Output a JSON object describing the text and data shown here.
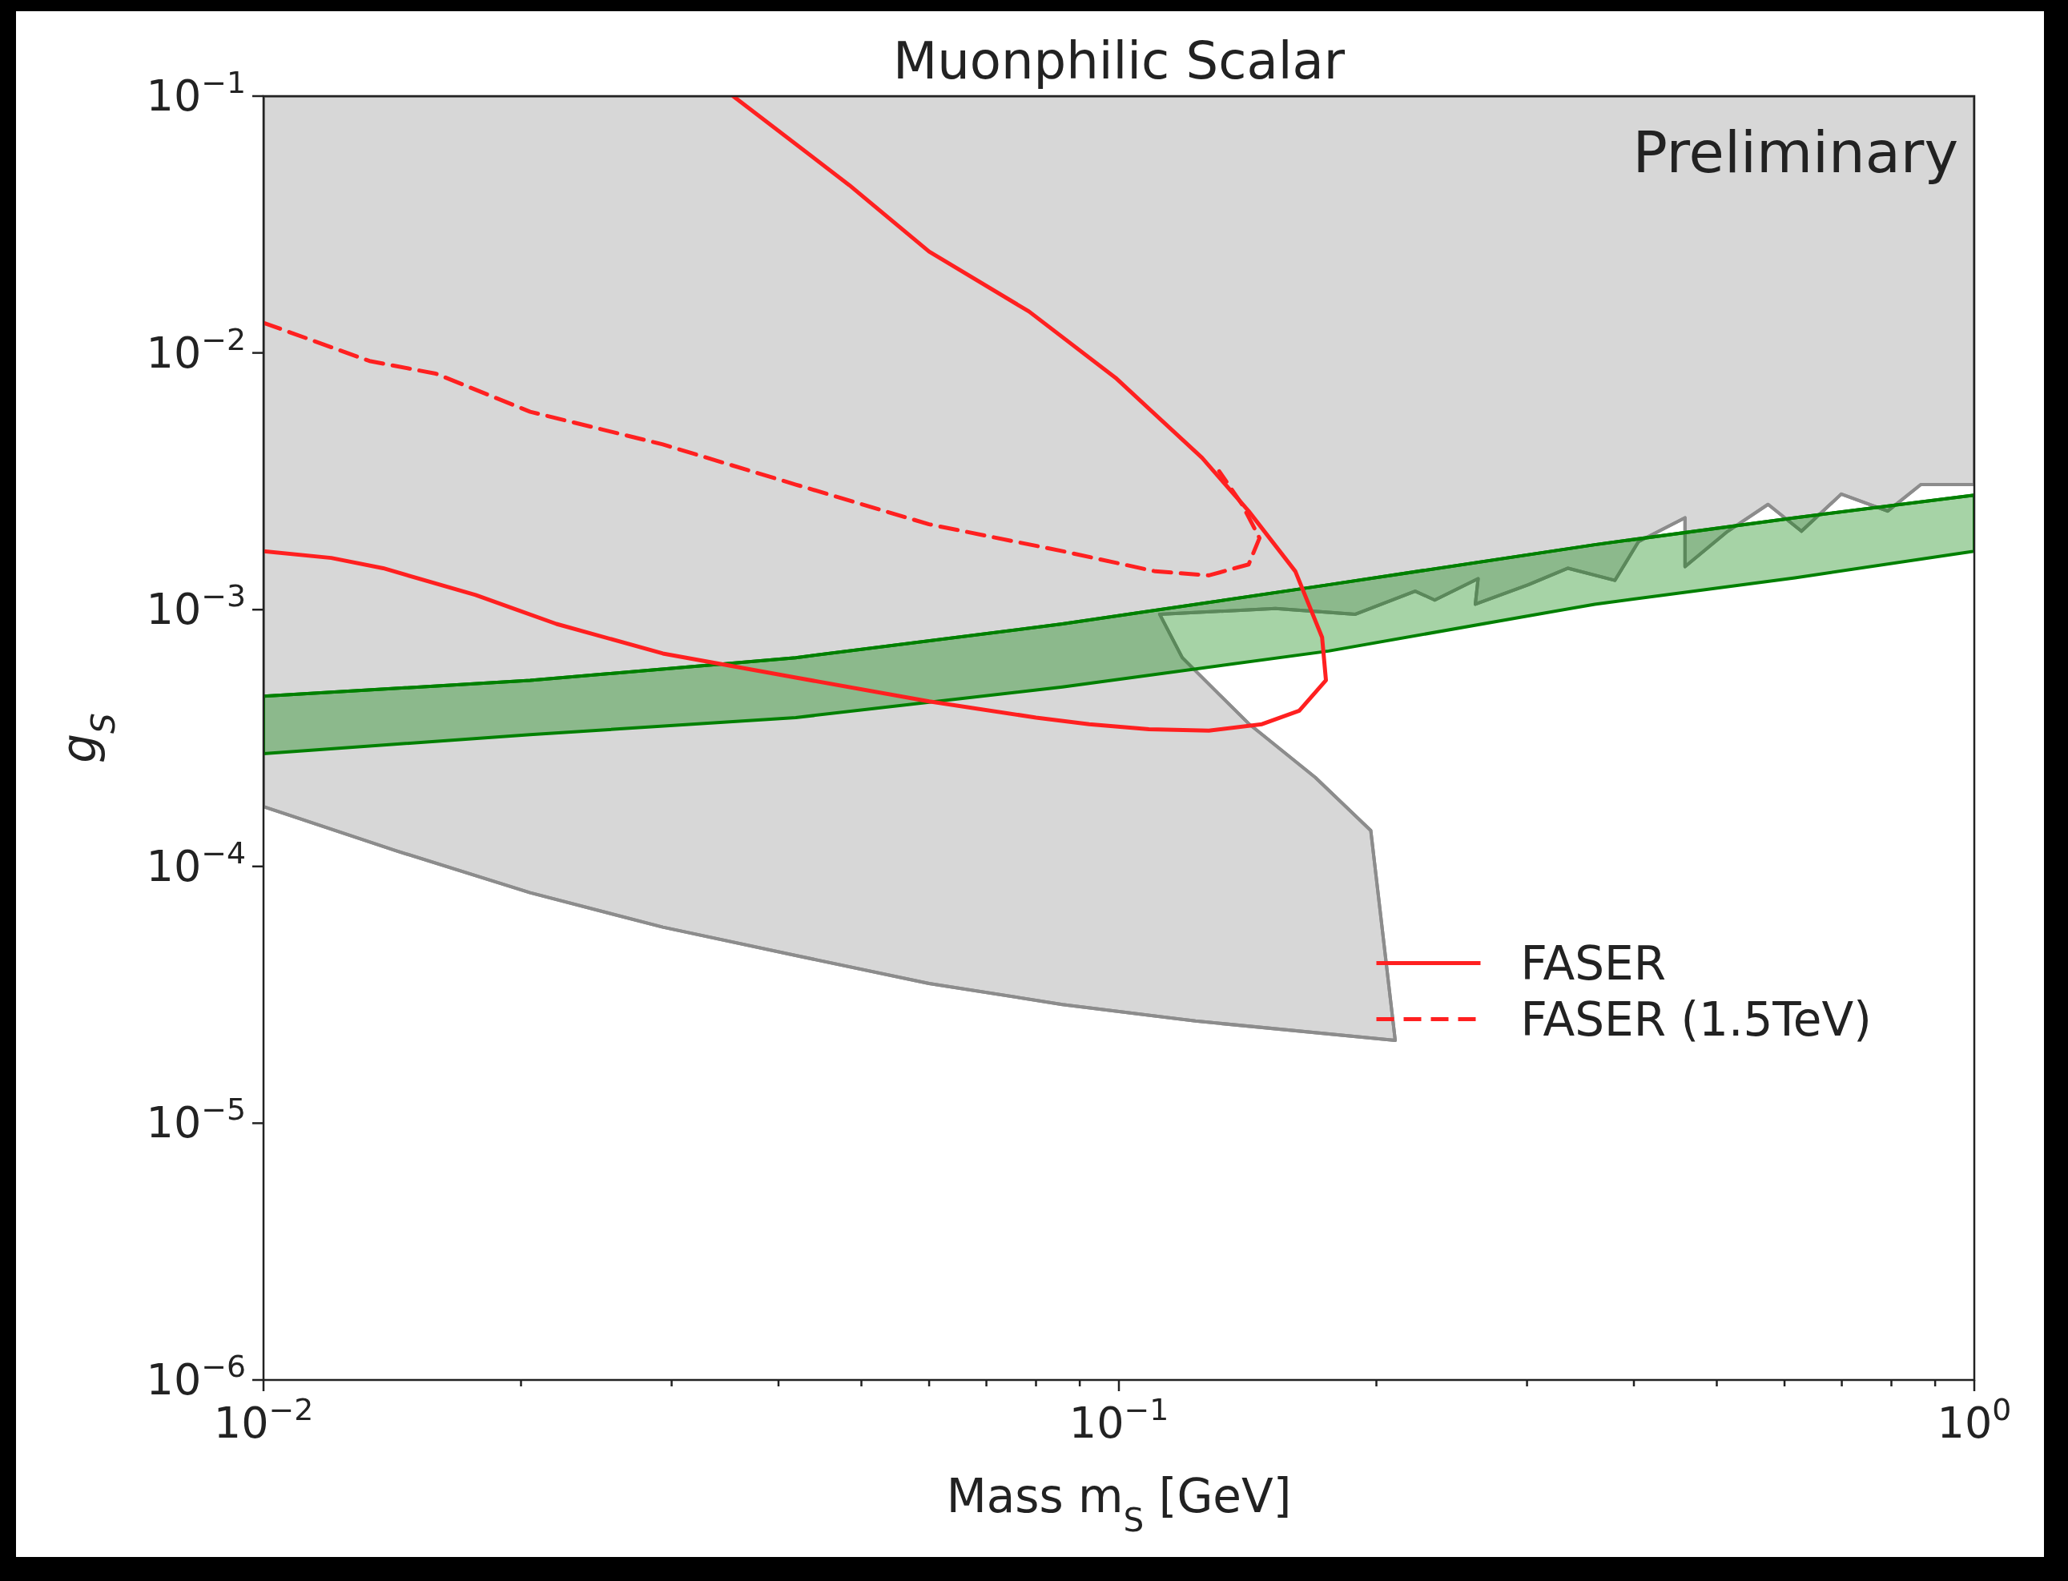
{
  "chart_data": {
    "type": "line",
    "title": "Muonphilic Scalar",
    "xlabel": "Mass m$_{S}$ [GeV]",
    "ylabel": "g$_{S}$",
    "annotations": [
      "Preliminary"
    ],
    "log": "xy",
    "grid": false,
    "legend": "lower right",
    "xlim": [
      0.01,
      1
    ],
    "ylim": [
      1e-06,
      0.1
    ],
    "xticks": [
      {
        "value": 0.01,
        "label": "10$^{−2}$"
      },
      {
        "value": 0.02,
        "label": null
      },
      {
        "value": 0.03,
        "label": null
      },
      {
        "value": 0.04,
        "label": null
      },
      {
        "value": 0.05,
        "label": null
      },
      {
        "value": 0.06,
        "label": null
      },
      {
        "value": 0.07,
        "label": null
      },
      {
        "value": 0.08,
        "label": null
      },
      {
        "value": 0.09,
        "label": null
      },
      {
        "value": 0.1,
        "label": "10$^{−1}$"
      },
      {
        "value": 0.2,
        "label": null
      },
      {
        "value": 0.3,
        "label": null
      },
      {
        "value": 0.4,
        "label": null
      },
      {
        "value": 0.5,
        "label": null
      },
      {
        "value": 0.6,
        "label": null
      },
      {
        "value": 0.7,
        "label": null
      },
      {
        "value": 0.8,
        "label": null
      },
      {
        "value": 0.9,
        "label": null
      },
      {
        "value": 1,
        "label": "10$^{0}$"
      }
    ],
    "yticks": [
      {
        "value": 1e-06,
        "label": "10$^{−6}$"
      },
      {
        "value": 1e-05,
        "label": "10$^{−5}$"
      },
      {
        "value": 0.0001,
        "label": "10$^{−4}$"
      },
      {
        "value": 0.001,
        "label": "10$^{−3}$"
      },
      {
        "value": 0.01,
        "label": "10$^{−2}$"
      },
      {
        "value": 0.1,
        "label": "10$^{−1}$"
      }
    ],
    "series": [
      {
        "color": "#8c8c8c",
        "x": [
          0.01,
          0.0143,
          0.0205,
          0.0293,
          0.0419,
          0.06,
          0.0859,
          0.1229,
          0.2104,
          0.197,
          0.1697,
          0.1418,
          0.1186,
          0.1116,
          0.1524,
          0.189,
          0.222,
          0.234,
          0.263,
          0.261,
          0.301,
          0.335,
          0.38,
          0.405,
          0.459,
          0.459,
          0.515,
          0.574,
          0.628,
          0.699,
          0.792,
          0.866,
          1
        ],
        "values": [
          0.000171,
          0.000115,
          7.9e-05,
          5.8e-05,
          4.5e-05,
          3.5e-05,
          2.9e-05,
          2.5e-05,
          2.1e-05,
          0.000138,
          0.000222,
          0.00036,
          0.00065,
          0.00096,
          0.00101,
          0.00096,
          0.00118,
          0.00109,
          0.00132,
          0.00105,
          0.00125,
          0.00145,
          0.0013,
          0.00184,
          0.00228,
          0.00147,
          0.00202,
          0.00257,
          0.00202,
          0.00282,
          0.00242,
          0.00307,
          0.00307
        ],
        "lower": [
          0.000171,
          0.000115,
          7.9e-05,
          5.8e-05,
          4.5e-05,
          3.5e-05,
          2.9e-05,
          2.5e-05,
          2.1e-05,
          0.000138,
          0.000222,
          0.00036,
          0.00065,
          0.00096,
          0.00101,
          0.00096,
          0.00118,
          0.00109,
          0.00132,
          0.00105,
          0.00125,
          0.00145,
          0.0013,
          0.00184,
          0.00228,
          0.00147,
          0.00202,
          0.00257,
          0.00202,
          0.00282,
          0.00242,
          0.00307,
          0.00307
        ],
        "upper": [
          0.1,
          0.1,
          0.1,
          0.1,
          0.1,
          0.1,
          0.1,
          0.1,
          0.1,
          0.1,
          0.1,
          0.1,
          0.1,
          0.1,
          0.1,
          0.1,
          0.1,
          0.1,
          0.1,
          0.1,
          0.1,
          0.1,
          0.1,
          0.1,
          0.1,
          0.1,
          0.1,
          0.1,
          0.1,
          0.1,
          0.1,
          0.1,
          0.1
        ]
      },
      {
        "color": "#008000",
        "x": [
          0.01,
          0.0205,
          0.0419,
          0.0859,
          0.1758,
          0.36,
          0.617,
          1
        ],
        "values": [
          0.00046,
          0.00053,
          0.00065,
          0.00088,
          0.00125,
          0.00179,
          0.00228,
          0.00279
        ],
        "lower": [
          0.000275,
          0.000326,
          0.00038,
          0.0005,
          0.00069,
          0.00105,
          0.00133,
          0.00169
        ],
        "upper": [
          0.00046,
          0.00053,
          0.00065,
          0.00088,
          0.00125,
          0.00179,
          0.00228,
          0.00279
        ]
      },
      {
        "name": "FASER",
        "color": "#ff2020",
        "line_style": "solid",
        "x": [
          0.01,
          0.012,
          0.0138,
          0.0177,
          0.022,
          0.0293,
          0.0419,
          0.06,
          0.08,
          0.0923,
          0.1084,
          0.1274,
          0.147,
          0.1625,
          0.1746,
          0.1728,
          0.1608,
          0.1418,
          0.1251,
          0.0991,
          0.0785,
          0.06,
          0.0484,
          0.0354
        ],
        "values": [
          0.00169,
          0.00159,
          0.00145,
          0.00114,
          0.00088,
          0.000675,
          0.000544,
          0.000439,
          0.00038,
          0.000358,
          0.000342,
          0.000338,
          0.000358,
          0.000404,
          0.000531,
          0.00078,
          0.00141,
          0.00242,
          0.0039,
          0.008,
          0.0145,
          0.0248,
          0.045,
          0.1
        ]
      },
      {
        "name": "FASER (1.5TeV)",
        "color": "#ff2020",
        "line_style": "dashed",
        "x": [
          0.01,
          0.0133,
          0.0159,
          0.0205,
          0.0293,
          0.0419,
          0.06,
          0.0859,
          0.1103,
          0.1274,
          0.1418,
          0.146,
          0.1393,
          0.131
        ],
        "values": [
          0.0131,
          0.0093,
          0.0083,
          0.0059,
          0.0044,
          0.00307,
          0.00215,
          0.00169,
          0.00141,
          0.00136,
          0.0015,
          0.0019,
          0.00257,
          0.00346
        ]
      }
    ]
  }
}
